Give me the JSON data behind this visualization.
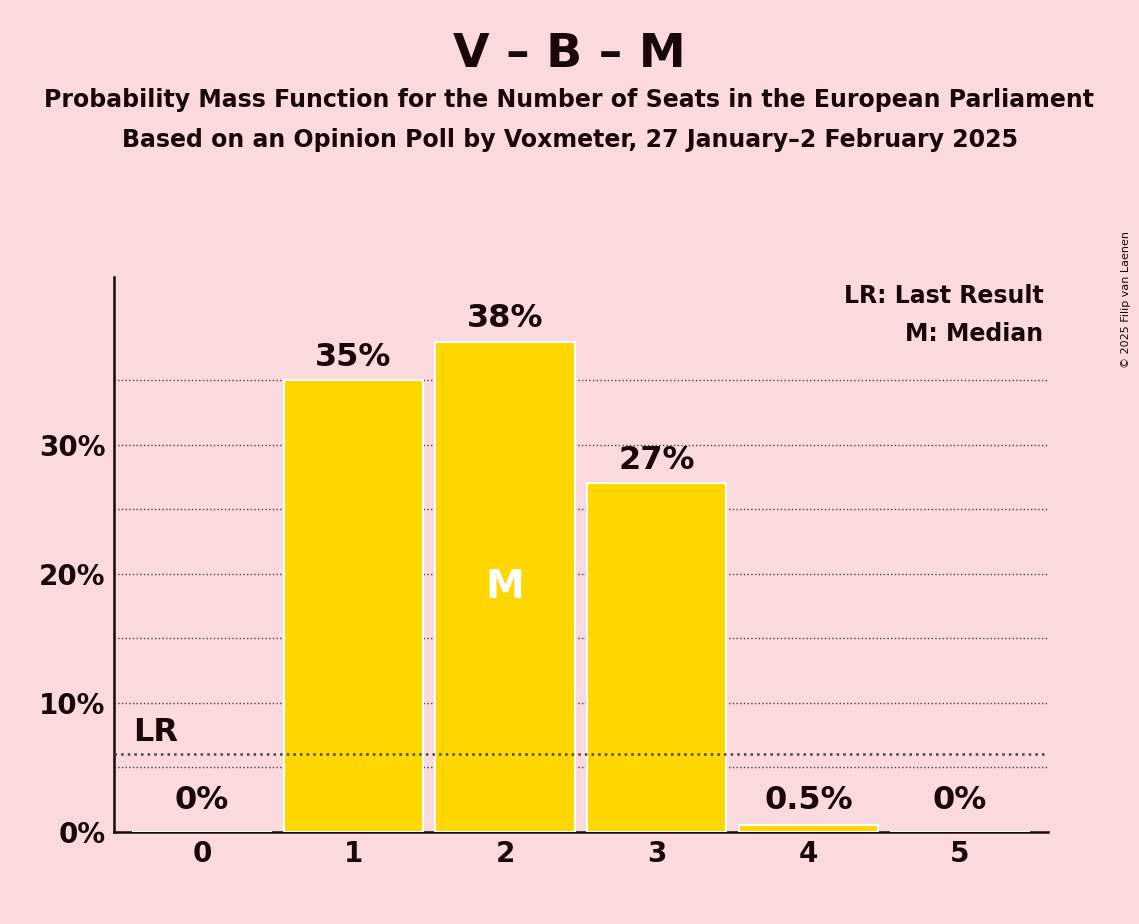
{
  "title": "V – B – M",
  "subtitle1": "Probability Mass Function for the Number of Seats in the European Parliament",
  "subtitle2": "Based on an Opinion Poll by Voxmeter, 27 January–2 February 2025",
  "copyright": "© 2025 Filip van Laenen",
  "categories": [
    0,
    1,
    2,
    3,
    4,
    5
  ],
  "values": [
    0.0,
    35.0,
    38.0,
    27.0,
    0.5,
    0.0
  ],
  "bar_color": "#FFD700",
  "bar_edge_color": "white",
  "background_color": "#FADADD",
  "label_color": "#1a0808",
  "median_bar": 2,
  "median_label": "M",
  "median_label_color": "white",
  "lr_value": 6.0,
  "lr_label": "LR",
  "legend_lr": "LR: Last Result",
  "legend_m": "M: Median",
  "ylim": [
    0,
    43
  ],
  "ytick_positions": [
    0,
    10,
    20,
    30
  ],
  "ytick_labels": [
    "0%",
    "10%",
    "20%",
    "30%"
  ],
  "grid_lines": [
    5,
    10,
    15,
    20,
    25,
    30,
    35
  ],
  "grid_color": "#444444",
  "title_fontsize": 34,
  "subtitle_fontsize": 17,
  "bar_label_fontsize": 23,
  "axis_label_fontsize": 20,
  "legend_fontsize": 17
}
